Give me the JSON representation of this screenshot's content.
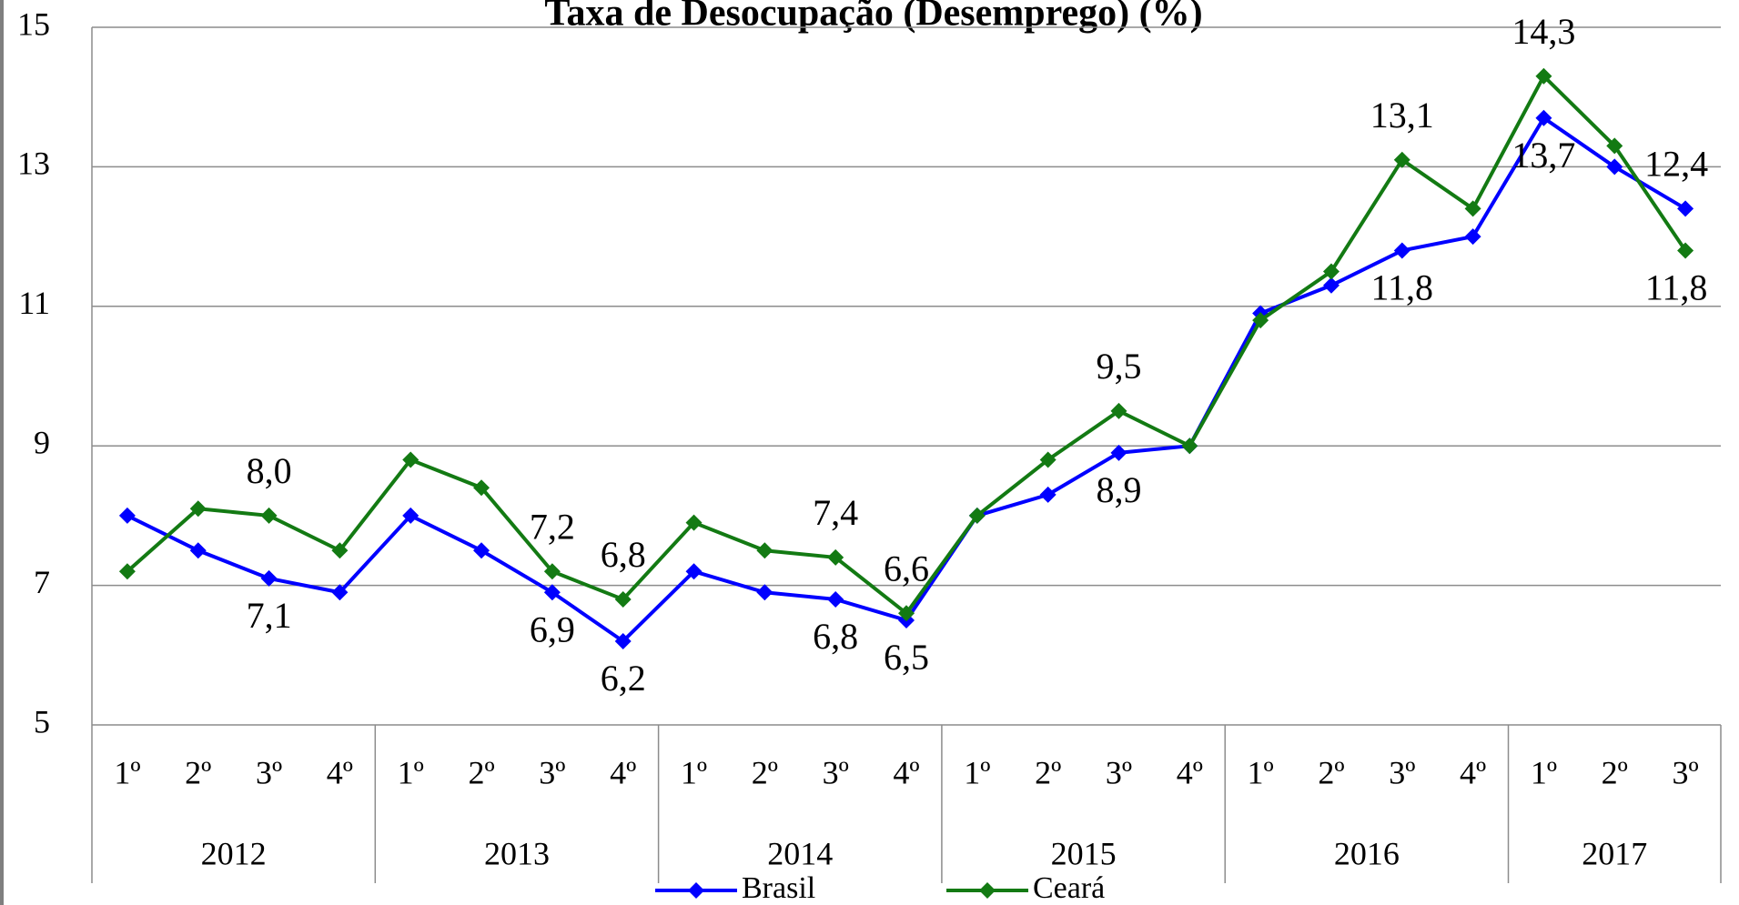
{
  "chart_data": {
    "type": "line",
    "title": "Taxa de Desocupação (Desemprego) (%)",
    "categories": [
      "1º",
      "2º",
      "3º",
      "4º",
      "1º",
      "2º",
      "3º",
      "4º",
      "1º",
      "2º",
      "3º",
      "4º",
      "1º",
      "2º",
      "3º",
      "4º",
      "1º",
      "2º",
      "3º",
      "4º",
      "1º",
      "2º",
      "3º"
    ],
    "groups": [
      {
        "label": "2012",
        "size": 4
      },
      {
        "label": "2013",
        "size": 4
      },
      {
        "label": "2014",
        "size": 4
      },
      {
        "label": "2015",
        "size": 4
      },
      {
        "label": "2016",
        "size": 4
      },
      {
        "label": "2017",
        "size": 3
      }
    ],
    "series": [
      {
        "name": "Brasil",
        "color": "#0000ff",
        "values": [
          8.0,
          7.5,
          7.1,
          6.9,
          8.0,
          7.5,
          6.9,
          6.2,
          7.2,
          6.9,
          6.8,
          6.5,
          8.0,
          8.3,
          8.9,
          9.0,
          10.9,
          11.3,
          11.8,
          12.0,
          13.7,
          13.0,
          12.4
        ],
        "value_labels": [
          null,
          null,
          "7,1",
          null,
          null,
          null,
          "6,9",
          "6,2",
          null,
          null,
          "6,8",
          "6,5",
          null,
          null,
          "8,9",
          null,
          null,
          null,
          "11,8",
          null,
          "13,7",
          null,
          "12,4"
        ]
      },
      {
        "name": "Ceará",
        "color": "#137a13",
        "values": [
          7.2,
          8.1,
          8.0,
          7.5,
          8.8,
          8.4,
          7.2,
          6.8,
          7.9,
          7.5,
          7.4,
          6.6,
          8.0,
          8.8,
          9.5,
          9.0,
          10.8,
          11.5,
          13.1,
          12.4,
          14.3,
          13.3,
          11.8
        ],
        "value_labels": [
          null,
          null,
          "8,0",
          null,
          null,
          null,
          "7,2",
          "6,8",
          null,
          null,
          "7,4",
          "6,6",
          null,
          null,
          "9,5",
          null,
          null,
          null,
          "13,1",
          null,
          "14,3",
          null,
          "11,8"
        ]
      }
    ],
    "ylim": [
      5,
      15
    ],
    "yticks": [
      5,
      7,
      9,
      11,
      13,
      15
    ],
    "grid": true,
    "legend": "bottom"
  }
}
